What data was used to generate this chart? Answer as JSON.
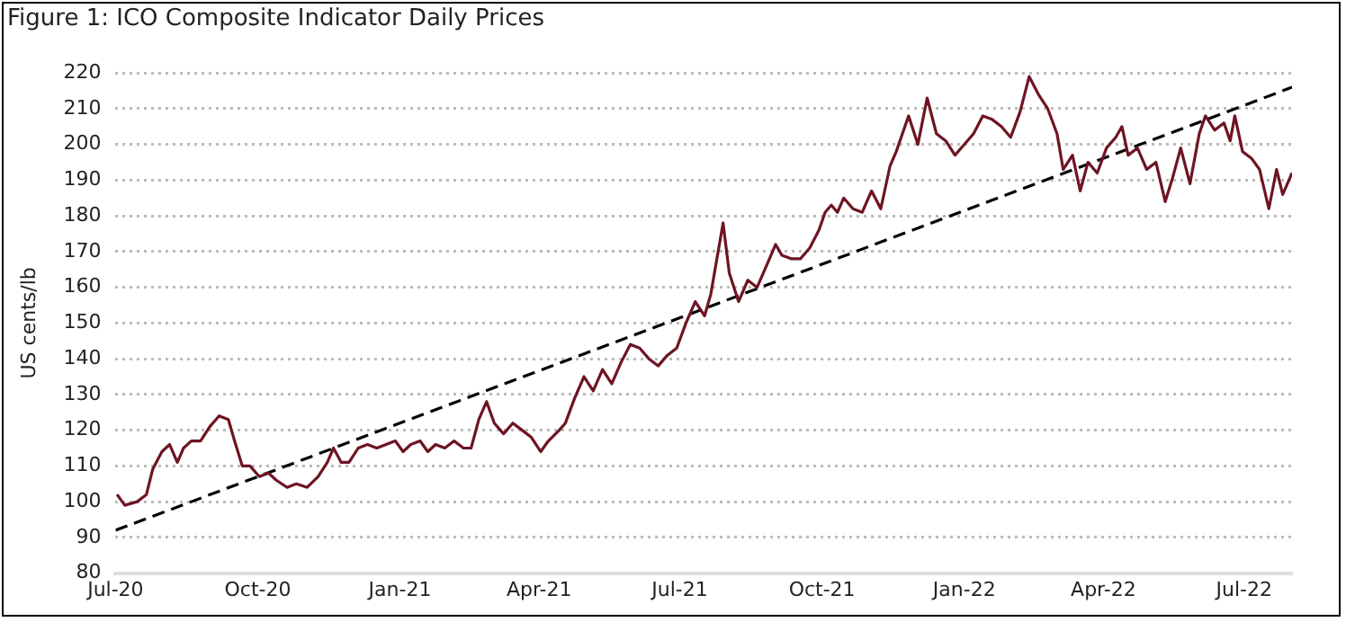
{
  "chart_data": {
    "type": "line",
    "title": "Figure 1: ICO Composite Indicator Daily Prices",
    "ylabel": "US cents/lb",
    "xlim": [
      "2020-07-01",
      "2022-08-01"
    ],
    "xticks": [
      {
        "value": "2020-07-01",
        "label": "Jul-20"
      },
      {
        "value": "2020-10-01",
        "label": "Oct-20"
      },
      {
        "value": "2021-01-01",
        "label": "Jan-21"
      },
      {
        "value": "2021-04-01",
        "label": "Apr-21"
      },
      {
        "value": "2021-07-01",
        "label": "Jul-21"
      },
      {
        "value": "2021-10-01",
        "label": "Oct-21"
      },
      {
        "value": "2022-01-01",
        "label": "Jan-22"
      },
      {
        "value": "2022-04-01",
        "label": "Apr-22"
      },
      {
        "value": "2022-07-01",
        "label": "Jul-22"
      }
    ],
    "ylim": [
      80,
      220
    ],
    "yticks": [
      80,
      90,
      100,
      110,
      120,
      130,
      140,
      150,
      160,
      170,
      180,
      190,
      200,
      210,
      220
    ],
    "grid": "y",
    "legend": false,
    "marker": "none",
    "series": [
      {
        "color": "#6e1423",
        "line_style": "solid",
        "x": [
          "2020-07-02",
          "2020-07-07",
          "2020-07-15",
          "2020-07-21",
          "2020-07-25",
          "2020-07-31",
          "2020-08-05",
          "2020-08-10",
          "2020-08-14",
          "2020-08-19",
          "2020-08-25",
          "2020-08-31",
          "2020-09-06",
          "2020-09-12",
          "2020-09-16",
          "2020-09-21",
          "2020-09-26",
          "2020-10-02",
          "2020-10-08",
          "2020-10-13",
          "2020-10-20",
          "2020-10-26",
          "2020-11-02",
          "2020-11-09",
          "2020-11-15",
          "2020-11-19",
          "2020-11-24",
          "2020-11-29",
          "2020-12-05",
          "2020-12-11",
          "2020-12-17",
          "2020-12-23",
          "2020-12-29",
          "2021-01-03",
          "2021-01-08",
          "2021-01-14",
          "2021-01-19",
          "2021-01-24",
          "2021-01-30",
          "2021-02-05",
          "2021-02-11",
          "2021-02-16",
          "2021-02-21",
          "2021-02-26",
          "2021-03-03",
          "2021-03-09",
          "2021-03-15",
          "2021-03-21",
          "2021-03-27",
          "2021-04-02",
          "2021-04-07",
          "2021-04-14",
          "2021-04-18",
          "2021-04-24",
          "2021-04-30",
          "2021-05-06",
          "2021-05-12",
          "2021-05-18",
          "2021-05-24",
          "2021-05-30",
          "2021-06-05",
          "2021-06-11",
          "2021-06-17",
          "2021-06-23",
          "2021-06-29",
          "2021-07-05",
          "2021-07-11",
          "2021-07-17",
          "2021-07-21",
          "2021-07-25",
          "2021-07-29",
          "2021-08-02",
          "2021-08-08",
          "2021-08-14",
          "2021-08-20",
          "2021-08-26",
          "2021-09-01",
          "2021-09-05",
          "2021-09-11",
          "2021-09-17",
          "2021-09-23",
          "2021-09-29",
          "2021-10-03",
          "2021-10-07",
          "2021-10-11",
          "2021-10-15",
          "2021-10-21",
          "2021-10-27",
          "2021-11-02",
          "2021-11-08",
          "2021-11-14",
          "2021-11-18",
          "2021-11-22",
          "2021-11-26",
          "2021-12-02",
          "2021-12-08",
          "2021-12-14",
          "2021-12-20",
          "2021-12-26",
          "2022-01-01",
          "2022-01-07",
          "2022-01-13",
          "2022-01-19",
          "2022-01-25",
          "2022-01-31",
          "2022-02-06",
          "2022-02-12",
          "2022-02-18",
          "2022-02-24",
          "2022-03-02",
          "2022-03-06",
          "2022-03-12",
          "2022-03-17",
          "2022-03-22",
          "2022-03-28",
          "2022-04-03",
          "2022-04-09",
          "2022-04-13",
          "2022-04-17",
          "2022-04-23",
          "2022-04-29",
          "2022-05-05",
          "2022-05-11",
          "2022-05-16",
          "2022-05-21",
          "2022-05-27",
          "2022-06-02",
          "2022-06-06",
          "2022-06-12",
          "2022-06-18",
          "2022-06-22",
          "2022-06-25",
          "2022-06-30",
          "2022-07-06",
          "2022-07-11",
          "2022-07-17",
          "2022-07-22",
          "2022-07-26",
          "2022-08-01"
        ],
        "values": [
          102,
          99,
          100,
          102,
          109,
          114,
          116,
          111,
          115,
          117,
          117,
          121,
          124,
          123,
          117,
          110,
          110,
          107,
          108,
          106,
          104,
          105,
          104,
          107,
          111,
          115,
          111,
          111,
          115,
          116,
          115,
          116,
          117,
          114,
          116,
          117,
          114,
          116,
          115,
          117,
          115,
          115,
          123,
          128,
          122,
          119,
          122,
          120,
          118,
          114,
          117,
          120,
          122,
          129,
          135,
          131,
          137,
          133,
          139,
          144,
          143,
          140,
          138,
          141,
          143,
          150,
          156,
          152,
          158,
          168,
          178,
          164,
          156,
          162,
          160,
          166,
          172,
          169,
          168,
          168,
          171,
          176,
          181,
          183,
          181,
          185,
          182,
          181,
          187,
          182,
          194,
          198,
          203,
          208,
          200,
          213,
          203,
          201,
          197,
          200,
          203,
          208,
          207,
          205,
          202,
          209,
          219,
          214,
          210,
          203,
          193,
          197,
          187,
          195,
          192,
          199,
          202,
          205,
          197,
          199,
          193,
          195,
          184,
          191,
          199,
          189,
          203,
          208,
          204,
          206,
          201,
          208,
          198,
          196,
          193,
          182,
          193,
          186,
          192
        ]
      },
      {
        "color": "#000000",
        "line_style": "dashed",
        "x": [
          "2020-07-01",
          "2022-08-01"
        ],
        "values": [
          92,
          216
        ]
      }
    ]
  }
}
